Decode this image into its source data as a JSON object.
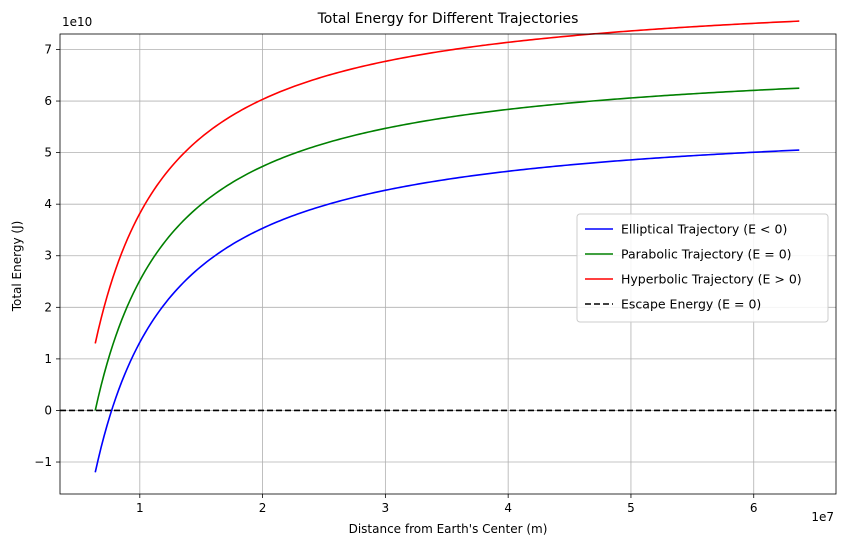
{
  "chart_data": {
    "type": "line",
    "title": "Total Energy for Different Trajectories",
    "xlabel": "Distance from Earth's Center (m)",
    "ylabel": "Total Energy (J)",
    "x_multiplier_label": "1e7",
    "y_multiplier_label": "1e10",
    "xlim": [
      3500000.0,
      66700000.0
    ],
    "ylim": [
      -16200000000.0,
      73000000000.0
    ],
    "x_ticks": [
      10000000.0,
      20000000.0,
      30000000.0,
      40000000.0,
      50000000.0,
      60000000.0
    ],
    "x_tick_labels": [
      "1",
      "2",
      "3",
      "4",
      "5",
      "6"
    ],
    "y_ticks": [
      -10000000000.0,
      0,
      10000000000.0,
      20000000000.0,
      30000000000.0,
      40000000000.0,
      50000000000.0,
      60000000000.0,
      70000000000.0
    ],
    "y_tick_labels": [
      "−1",
      "0",
      "1",
      "2",
      "3",
      "4",
      "5",
      "6",
      "7"
    ],
    "grid": true,
    "legend_position": "center-right",
    "x_range": [
      6371000.0,
      63710000.0
    ],
    "series": [
      {
        "name": "Elliptical Trajectory (E < 0)",
        "color": "#0000ff",
        "style": "solid",
        "offset": -12000000000.0,
        "total": 62500000000.0
      },
      {
        "name": "Parabolic Trajectory (E = 0)",
        "color": "#008000",
        "style": "solid",
        "offset": 0,
        "total": 62500000000.0
      },
      {
        "name": "Hyperbolic Trajectory (E > 0)",
        "color": "#ff0000",
        "style": "solid",
        "offset": 13000000000.0,
        "total": 62500000000.0
      },
      {
        "name": "Escape Energy (E = 0)",
        "color": "#000000",
        "style": "dashed",
        "constant": 0
      }
    ]
  }
}
